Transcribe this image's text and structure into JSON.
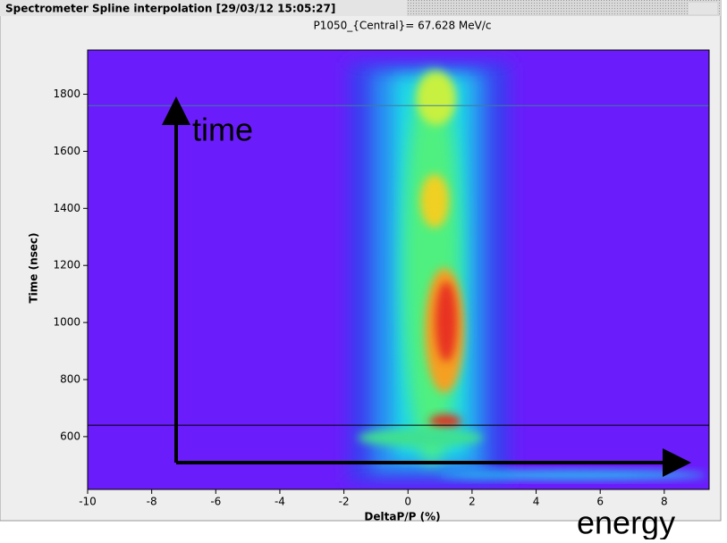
{
  "window_title": "Spectrometer Spline interpolation  [29/03/12 15:05:27]",
  "chart_data": {
    "type": "heatmap",
    "title": "P1050_{Central}= 67.628 MeV/c",
    "x_label": "DeltaP/P (%)",
    "y_label": "Time (nsec)",
    "xlim": [
      -10,
      9.4
    ],
    "xticks": [
      -10,
      -8,
      -6,
      -4,
      -2,
      0,
      2,
      4,
      6,
      8
    ],
    "ylim": [
      415,
      1955
    ],
    "yticks": [
      600,
      800,
      1000,
      1200,
      1400,
      1600,
      1800
    ],
    "hlines": [
      1760,
      640
    ],
    "annotations": [
      "time",
      "energy"
    ]
  }
}
